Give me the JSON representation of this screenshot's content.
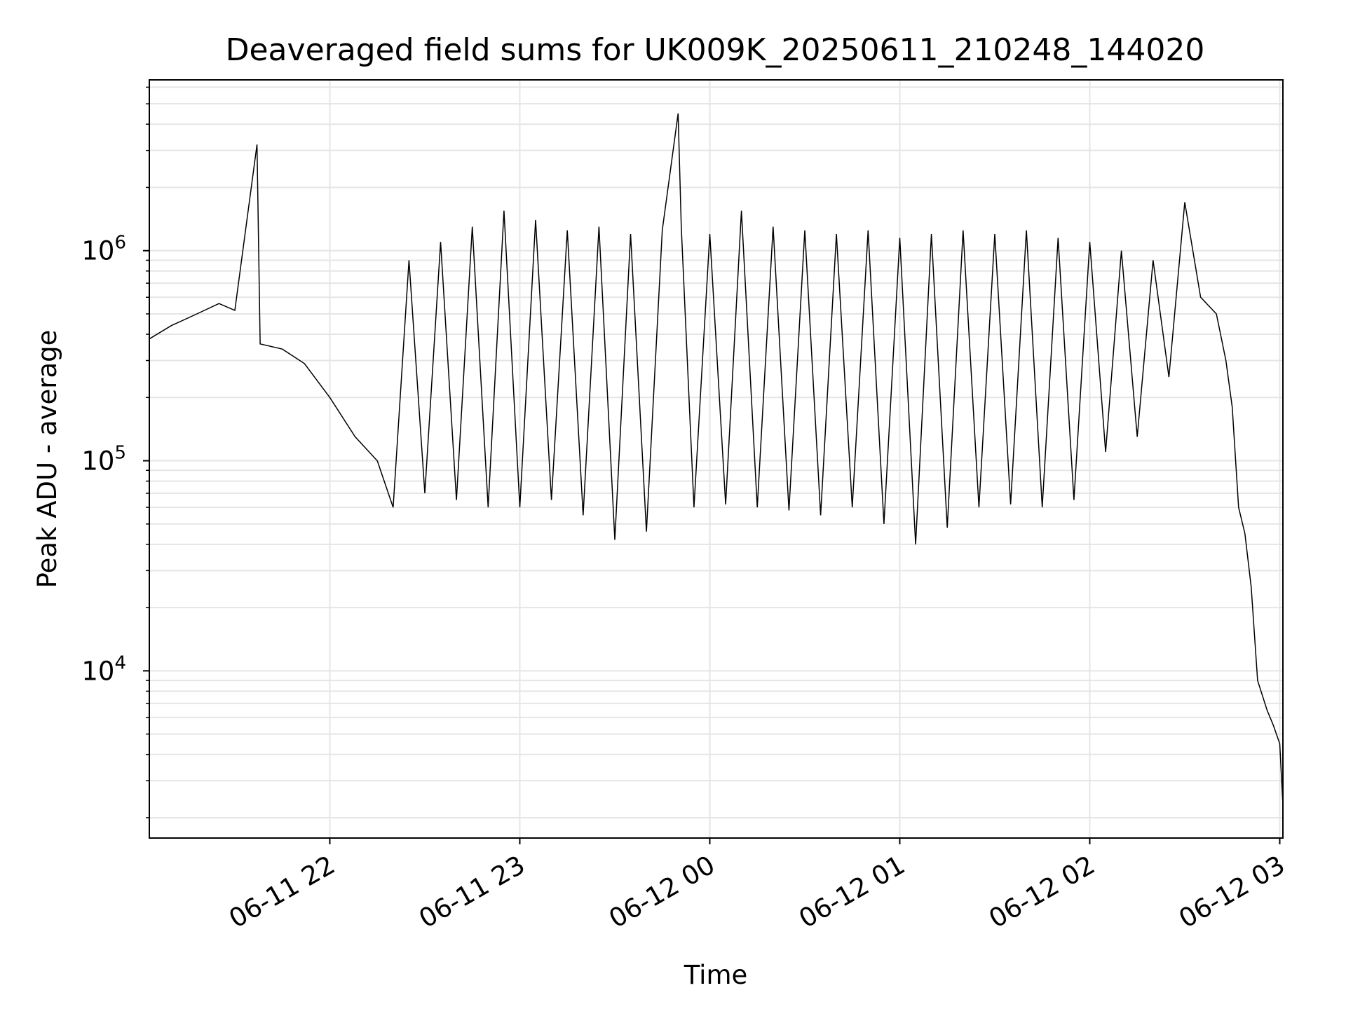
{
  "chart_data": {
    "type": "line",
    "title": "Deaveraged field sums for UK009K_20250611_210248_144020",
    "xlabel": "Time",
    "ylabel": "Peak ADU - average",
    "y_scale": "log",
    "ylim": [
      1600,
      6500000
    ],
    "xlim": [
      "2025-06-11 21:03",
      "2025-06-12 03:01"
    ],
    "grid": true,
    "colors": {
      "line": "#000000",
      "grid": "#e5e5e5",
      "axes": "#000000"
    },
    "x_ticks": [
      {
        "value": "2025-06-11 22:00",
        "label": "06-11 22"
      },
      {
        "value": "2025-06-11 23:00",
        "label": "06-11 23"
      },
      {
        "value": "2025-06-12 00:00",
        "label": "06-12 00"
      },
      {
        "value": "2025-06-12 01:00",
        "label": "06-12 01"
      },
      {
        "value": "2025-06-12 02:00",
        "label": "06-12 02"
      },
      {
        "value": "2025-06-12 03:00",
        "label": "06-12 03"
      }
    ],
    "y_ticks": [
      {
        "value": 10000,
        "base": "10",
        "exp": "4"
      },
      {
        "value": 100000,
        "base": "10",
        "exp": "5"
      },
      {
        "value": 1000000,
        "base": "10",
        "exp": "6"
      }
    ],
    "series": [
      {
        "points": [
          [
            "2025-06-11 21:03",
            380000
          ],
          [
            "2025-06-11 21:10",
            440000
          ],
          [
            "2025-06-11 21:18",
            500000
          ],
          [
            "2025-06-11 21:25",
            560000
          ],
          [
            "2025-06-11 21:30",
            520000
          ],
          [
            "2025-06-11 21:37",
            3200000
          ],
          [
            "2025-06-11 21:38",
            360000
          ],
          [
            "2025-06-11 21:45",
            340000
          ],
          [
            "2025-06-11 21:52",
            290000
          ],
          [
            "2025-06-11 22:00",
            200000
          ],
          [
            "2025-06-11 22:08",
            130000
          ],
          [
            "2025-06-11 22:15",
            100000
          ],
          [
            "2025-06-11 22:20",
            60000
          ],
          [
            "2025-06-11 22:25",
            900000
          ],
          [
            "2025-06-11 22:30",
            70000
          ],
          [
            "2025-06-11 22:35",
            1100000
          ],
          [
            "2025-06-11 22:40",
            65000
          ],
          [
            "2025-06-11 22:45",
            1300000
          ],
          [
            "2025-06-11 22:50",
            60000
          ],
          [
            "2025-06-11 22:55",
            1550000
          ],
          [
            "2025-06-11 23:00",
            60000
          ],
          [
            "2025-06-11 23:05",
            1400000
          ],
          [
            "2025-06-11 23:10",
            65000
          ],
          [
            "2025-06-11 23:15",
            1250000
          ],
          [
            "2025-06-11 23:20",
            55000
          ],
          [
            "2025-06-11 23:25",
            1300000
          ],
          [
            "2025-06-11 23:30",
            42000
          ],
          [
            "2025-06-11 23:35",
            1200000
          ],
          [
            "2025-06-11 23:40",
            46000
          ],
          [
            "2025-06-11 23:45",
            1250000
          ],
          [
            "2025-06-11 23:50",
            4500000
          ],
          [
            "2025-06-11 23:51",
            1300000
          ],
          [
            "2025-06-11 23:55",
            60000
          ],
          [
            "2025-06-12 00:00",
            1200000
          ],
          [
            "2025-06-12 00:05",
            62000
          ],
          [
            "2025-06-12 00:10",
            1550000
          ],
          [
            "2025-06-12 00:15",
            60000
          ],
          [
            "2025-06-12 00:20",
            1300000
          ],
          [
            "2025-06-12 00:25",
            58000
          ],
          [
            "2025-06-12 00:30",
            1250000
          ],
          [
            "2025-06-12 00:35",
            55000
          ],
          [
            "2025-06-12 00:40",
            1200000
          ],
          [
            "2025-06-12 00:45",
            60000
          ],
          [
            "2025-06-12 00:50",
            1250000
          ],
          [
            "2025-06-12 00:55",
            50000
          ],
          [
            "2025-06-12 01:00",
            1150000
          ],
          [
            "2025-06-12 01:05",
            40000
          ],
          [
            "2025-06-12 01:10",
            1200000
          ],
          [
            "2025-06-12 01:15",
            48000
          ],
          [
            "2025-06-12 01:20",
            1250000
          ],
          [
            "2025-06-12 01:25",
            60000
          ],
          [
            "2025-06-12 01:30",
            1200000
          ],
          [
            "2025-06-12 01:35",
            62000
          ],
          [
            "2025-06-12 01:40",
            1250000
          ],
          [
            "2025-06-12 01:45",
            60000
          ],
          [
            "2025-06-12 01:50",
            1150000
          ],
          [
            "2025-06-12 01:55",
            65000
          ],
          [
            "2025-06-12 02:00",
            1100000
          ],
          [
            "2025-06-12 02:05",
            110000
          ],
          [
            "2025-06-12 02:10",
            1000000
          ],
          [
            "2025-06-12 02:15",
            130000
          ],
          [
            "2025-06-12 02:20",
            900000
          ],
          [
            "2025-06-12 02:25",
            250000
          ],
          [
            "2025-06-12 02:30",
            1700000
          ],
          [
            "2025-06-12 02:35",
            600000
          ],
          [
            "2025-06-12 02:40",
            500000
          ],
          [
            "2025-06-12 02:43",
            300000
          ],
          [
            "2025-06-12 02:45",
            180000
          ],
          [
            "2025-06-12 02:47",
            60000
          ],
          [
            "2025-06-12 02:49",
            45000
          ],
          [
            "2025-06-12 02:51",
            25000
          ],
          [
            "2025-06-12 02:53",
            9000
          ],
          [
            "2025-06-12 02:56",
            6500
          ],
          [
            "2025-06-12 02:58",
            5500
          ],
          [
            "2025-06-12 03:00",
            4500
          ],
          [
            "2025-06-12 03:01",
            2300
          ]
        ]
      }
    ]
  }
}
